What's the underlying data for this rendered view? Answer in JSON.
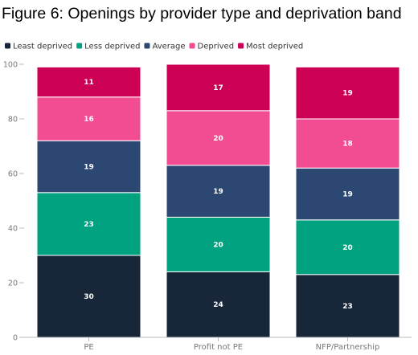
{
  "chart_data": {
    "type": "bar",
    "stacked": true,
    "title": "Figure 6: Openings by provider type and deprivation band",
    "xlabel": "",
    "ylabel": "",
    "ylim": [
      0,
      100
    ],
    "yticks": [
      0,
      20,
      40,
      60,
      80,
      100
    ],
    "grid": false,
    "legend_position": "top-left",
    "categories": [
      "PE",
      "Profit not PE",
      "NFP/Partnership"
    ],
    "series": [
      {
        "name": "Least deprived",
        "color": "#172639",
        "values": [
          30,
          24,
          23
        ]
      },
      {
        "name": "Less deprived",
        "color": "#00a27f",
        "values": [
          23,
          20,
          20
        ]
      },
      {
        "name": "Average",
        "color": "#2c4872",
        "values": [
          19,
          19,
          19
        ]
      },
      {
        "name": "Deprived",
        "color": "#f24d93",
        "values": [
          16,
          20,
          18
        ]
      },
      {
        "name": "Most deprived",
        "color": "#cc0055",
        "values": [
          11,
          17,
          19
        ]
      }
    ]
  }
}
